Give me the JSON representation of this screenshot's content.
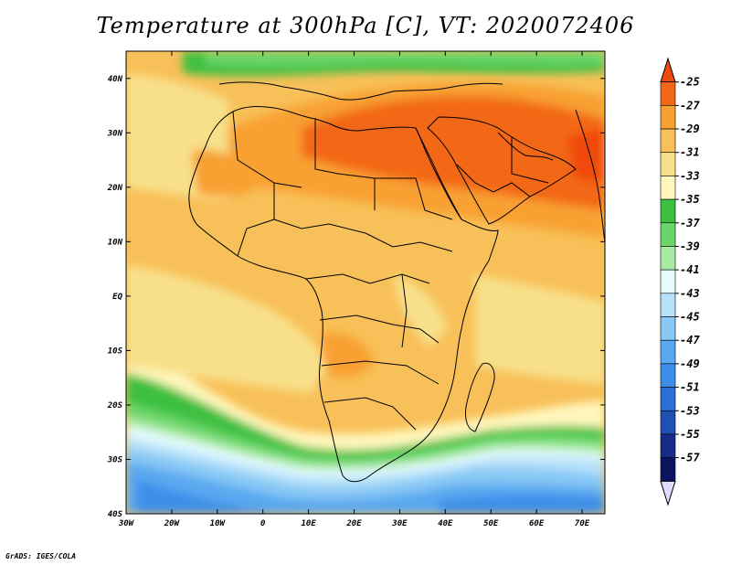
{
  "title": "Temperature at 300hPa [C], VT: 2020072406",
  "credit": "GrADS: IGES/COLA",
  "map": {
    "lon_range": [
      -30,
      75
    ],
    "lat_range": [
      -40,
      45
    ],
    "lon_ticks": [
      {
        "value": -30,
        "label": "30W"
      },
      {
        "value": -20,
        "label": "20W"
      },
      {
        "value": -10,
        "label": "10W"
      },
      {
        "value": 0,
        "label": "0"
      },
      {
        "value": 10,
        "label": "10E"
      },
      {
        "value": 20,
        "label": "20E"
      },
      {
        "value": 30,
        "label": "30E"
      },
      {
        "value": 40,
        "label": "40E"
      },
      {
        "value": 50,
        "label": "50E"
      },
      {
        "value": 60,
        "label": "60E"
      },
      {
        "value": 70,
        "label": "70E"
      }
    ],
    "lat_ticks": [
      {
        "value": 40,
        "label": "40N"
      },
      {
        "value": 30,
        "label": "30N"
      },
      {
        "value": 20,
        "label": "20N"
      },
      {
        "value": 10,
        "label": "10N"
      },
      {
        "value": 0,
        "label": "EQ"
      },
      {
        "value": -10,
        "label": "10S"
      },
      {
        "value": -20,
        "label": "20S"
      },
      {
        "value": -30,
        "label": "30S"
      },
      {
        "value": -40,
        "label": "40S"
      }
    ]
  },
  "colorbar": {
    "levels": [
      "-25",
      "-27",
      "-29",
      "-31",
      "-33",
      "-35",
      "-37",
      "-39",
      "-41",
      "-43",
      "-45",
      "-47",
      "-49",
      "-51",
      "-53",
      "-55",
      "-57"
    ],
    "colors": [
      "#f04a10",
      "#f26818",
      "#f8a030",
      "#f8c058",
      "#f8e08a",
      "#fff7bc",
      "#3cc040",
      "#6ad66a",
      "#a8eaa0",
      "#e6fbfd",
      "#b8e2fa",
      "#88c8f5",
      "#5aa8f0",
      "#3c8ee8",
      "#2a6fd6",
      "#2050b4",
      "#1a2a88",
      "#0a1460",
      "#e0dcff"
    ]
  },
  "chart_data": {
    "type": "heatmap",
    "title": "Temperature at 300hPa [C], VT: 2020072406",
    "variable": "Temperature at 300hPa",
    "units": "C",
    "valid_time": "2020072406",
    "x_range": [
      -30,
      75
    ],
    "y_range": [
      -40,
      45
    ],
    "x_ticks": [
      -30,
      -20,
      -10,
      0,
      10,
      20,
      30,
      40,
      50,
      60,
      70
    ],
    "y_ticks": [
      -40,
      -30,
      -20,
      -10,
      0,
      10,
      20,
      30,
      40
    ],
    "contour_levels": [
      -25,
      -27,
      -29,
      -31,
      -33,
      -35,
      -37,
      -39,
      -41,
      -43,
      -45,
      -47,
      -49,
      -51,
      -53,
      -55,
      -57
    ],
    "legend_placement": "right",
    "overlay": "coastlines and country boundaries"
  }
}
